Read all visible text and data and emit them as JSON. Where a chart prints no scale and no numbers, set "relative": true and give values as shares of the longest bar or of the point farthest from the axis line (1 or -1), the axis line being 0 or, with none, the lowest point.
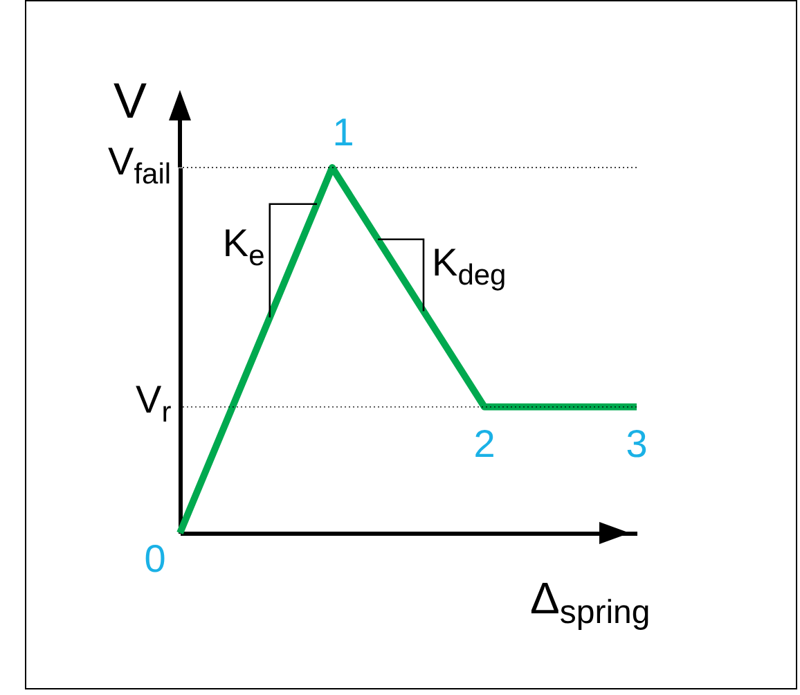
{
  "chart_data": {
    "type": "line",
    "relative": true,
    "xlabel": "Δ$_{spring}$",
    "ylabel": "V",
    "categories": [
      null,
      null,
      null,
      null
    ],
    "series": [
      {
        "color": "#00a94f",
        "values": [
          0,
          1,
          0.345,
          0.345
        ]
      }
    ],
    "ref_lines": [
      {
        "axis": "y",
        "value": 1,
        "label": "V$_{fail}$",
        "line_style": "dotted",
        "color": "#000000"
      },
      {
        "axis": "y",
        "value": 0.345,
        "label": "V$_{r}$",
        "line_style": "dotted",
        "color": "#000000"
      }
    ],
    "annotations": [
      "0",
      "1",
      "2",
      "3",
      "K$_{e}$",
      "K$_{deg}$"
    ]
  }
}
